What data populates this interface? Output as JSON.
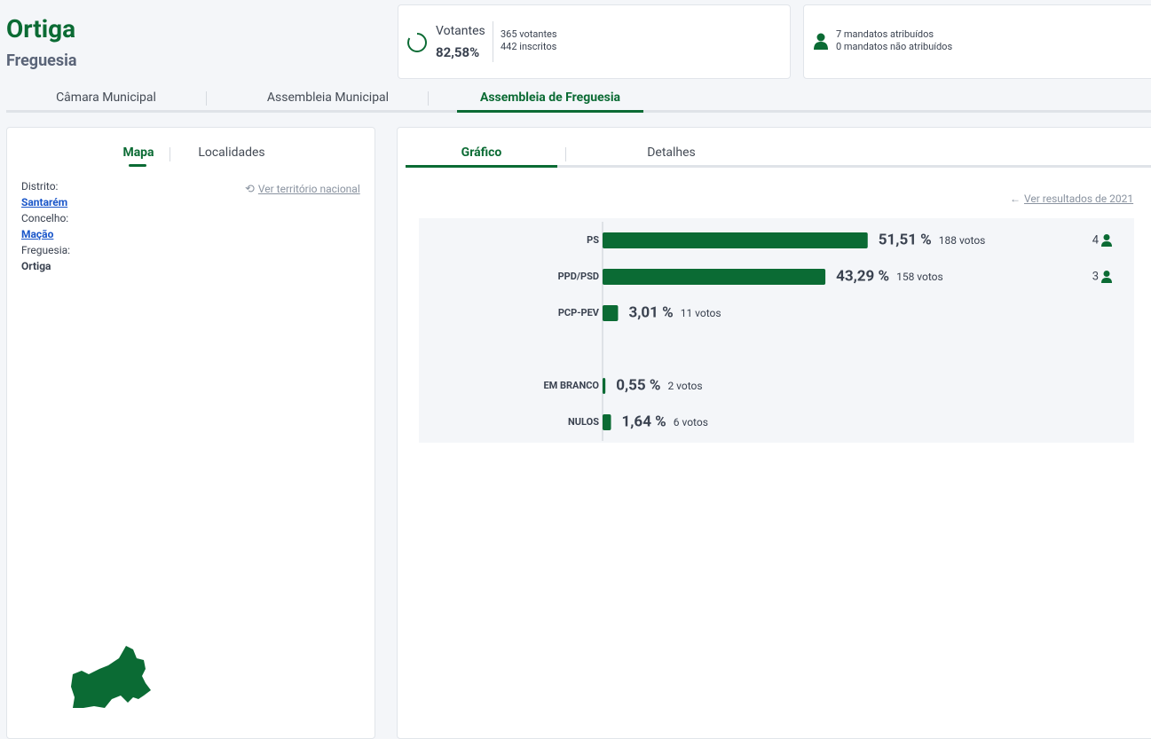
{
  "header": {
    "title": "Ortiga",
    "subtitle": "Freguesia"
  },
  "turnout": {
    "label": "Votantes",
    "value": "82,58%",
    "voters": "365 votantes",
    "registered": "442 inscritos"
  },
  "mandates": {
    "assigned": "7 mandatos atribuídos",
    "unassigned": "0 mandatos não atribuídos"
  },
  "tabs": [
    "Câmara Municipal",
    "Assembleia Municipal",
    "Assembleia de Freguesia"
  ],
  "left_panel": {
    "tabs": [
      "Mapa",
      "Localidades"
    ],
    "link": "Ver território nacional",
    "fields": [
      {
        "label": "Distrito:",
        "value": "Santarém"
      },
      {
        "label": "Concelho:",
        "value": "Mação"
      },
      {
        "label": "Freguesia:",
        "value": "Ortiga"
      }
    ]
  },
  "chart_panel": {
    "tabs": [
      "Gráfico",
      "Detalhes"
    ],
    "link": "Ver resultados de 2021"
  },
  "chart_data": {
    "type": "bar",
    "color": "#0b6b34",
    "categories": [
      "PS",
      "PPD/PSD",
      "PCP-PEV",
      null,
      "EM BRANCO",
      "NULOS"
    ],
    "values": [
      51.51,
      43.29,
      3.01,
      null,
      0.55,
      1.64
    ],
    "value_labels": [
      "51,51 %",
      "43,29 %",
      "3,01 %",
      null,
      "0,55 %",
      "1,64 %"
    ],
    "votes": [
      "188 votos",
      "158 votos",
      "11 votos",
      null,
      "2 votos",
      "6 votos"
    ],
    "seats": [
      4,
      3,
      null,
      null,
      null,
      null
    ]
  }
}
